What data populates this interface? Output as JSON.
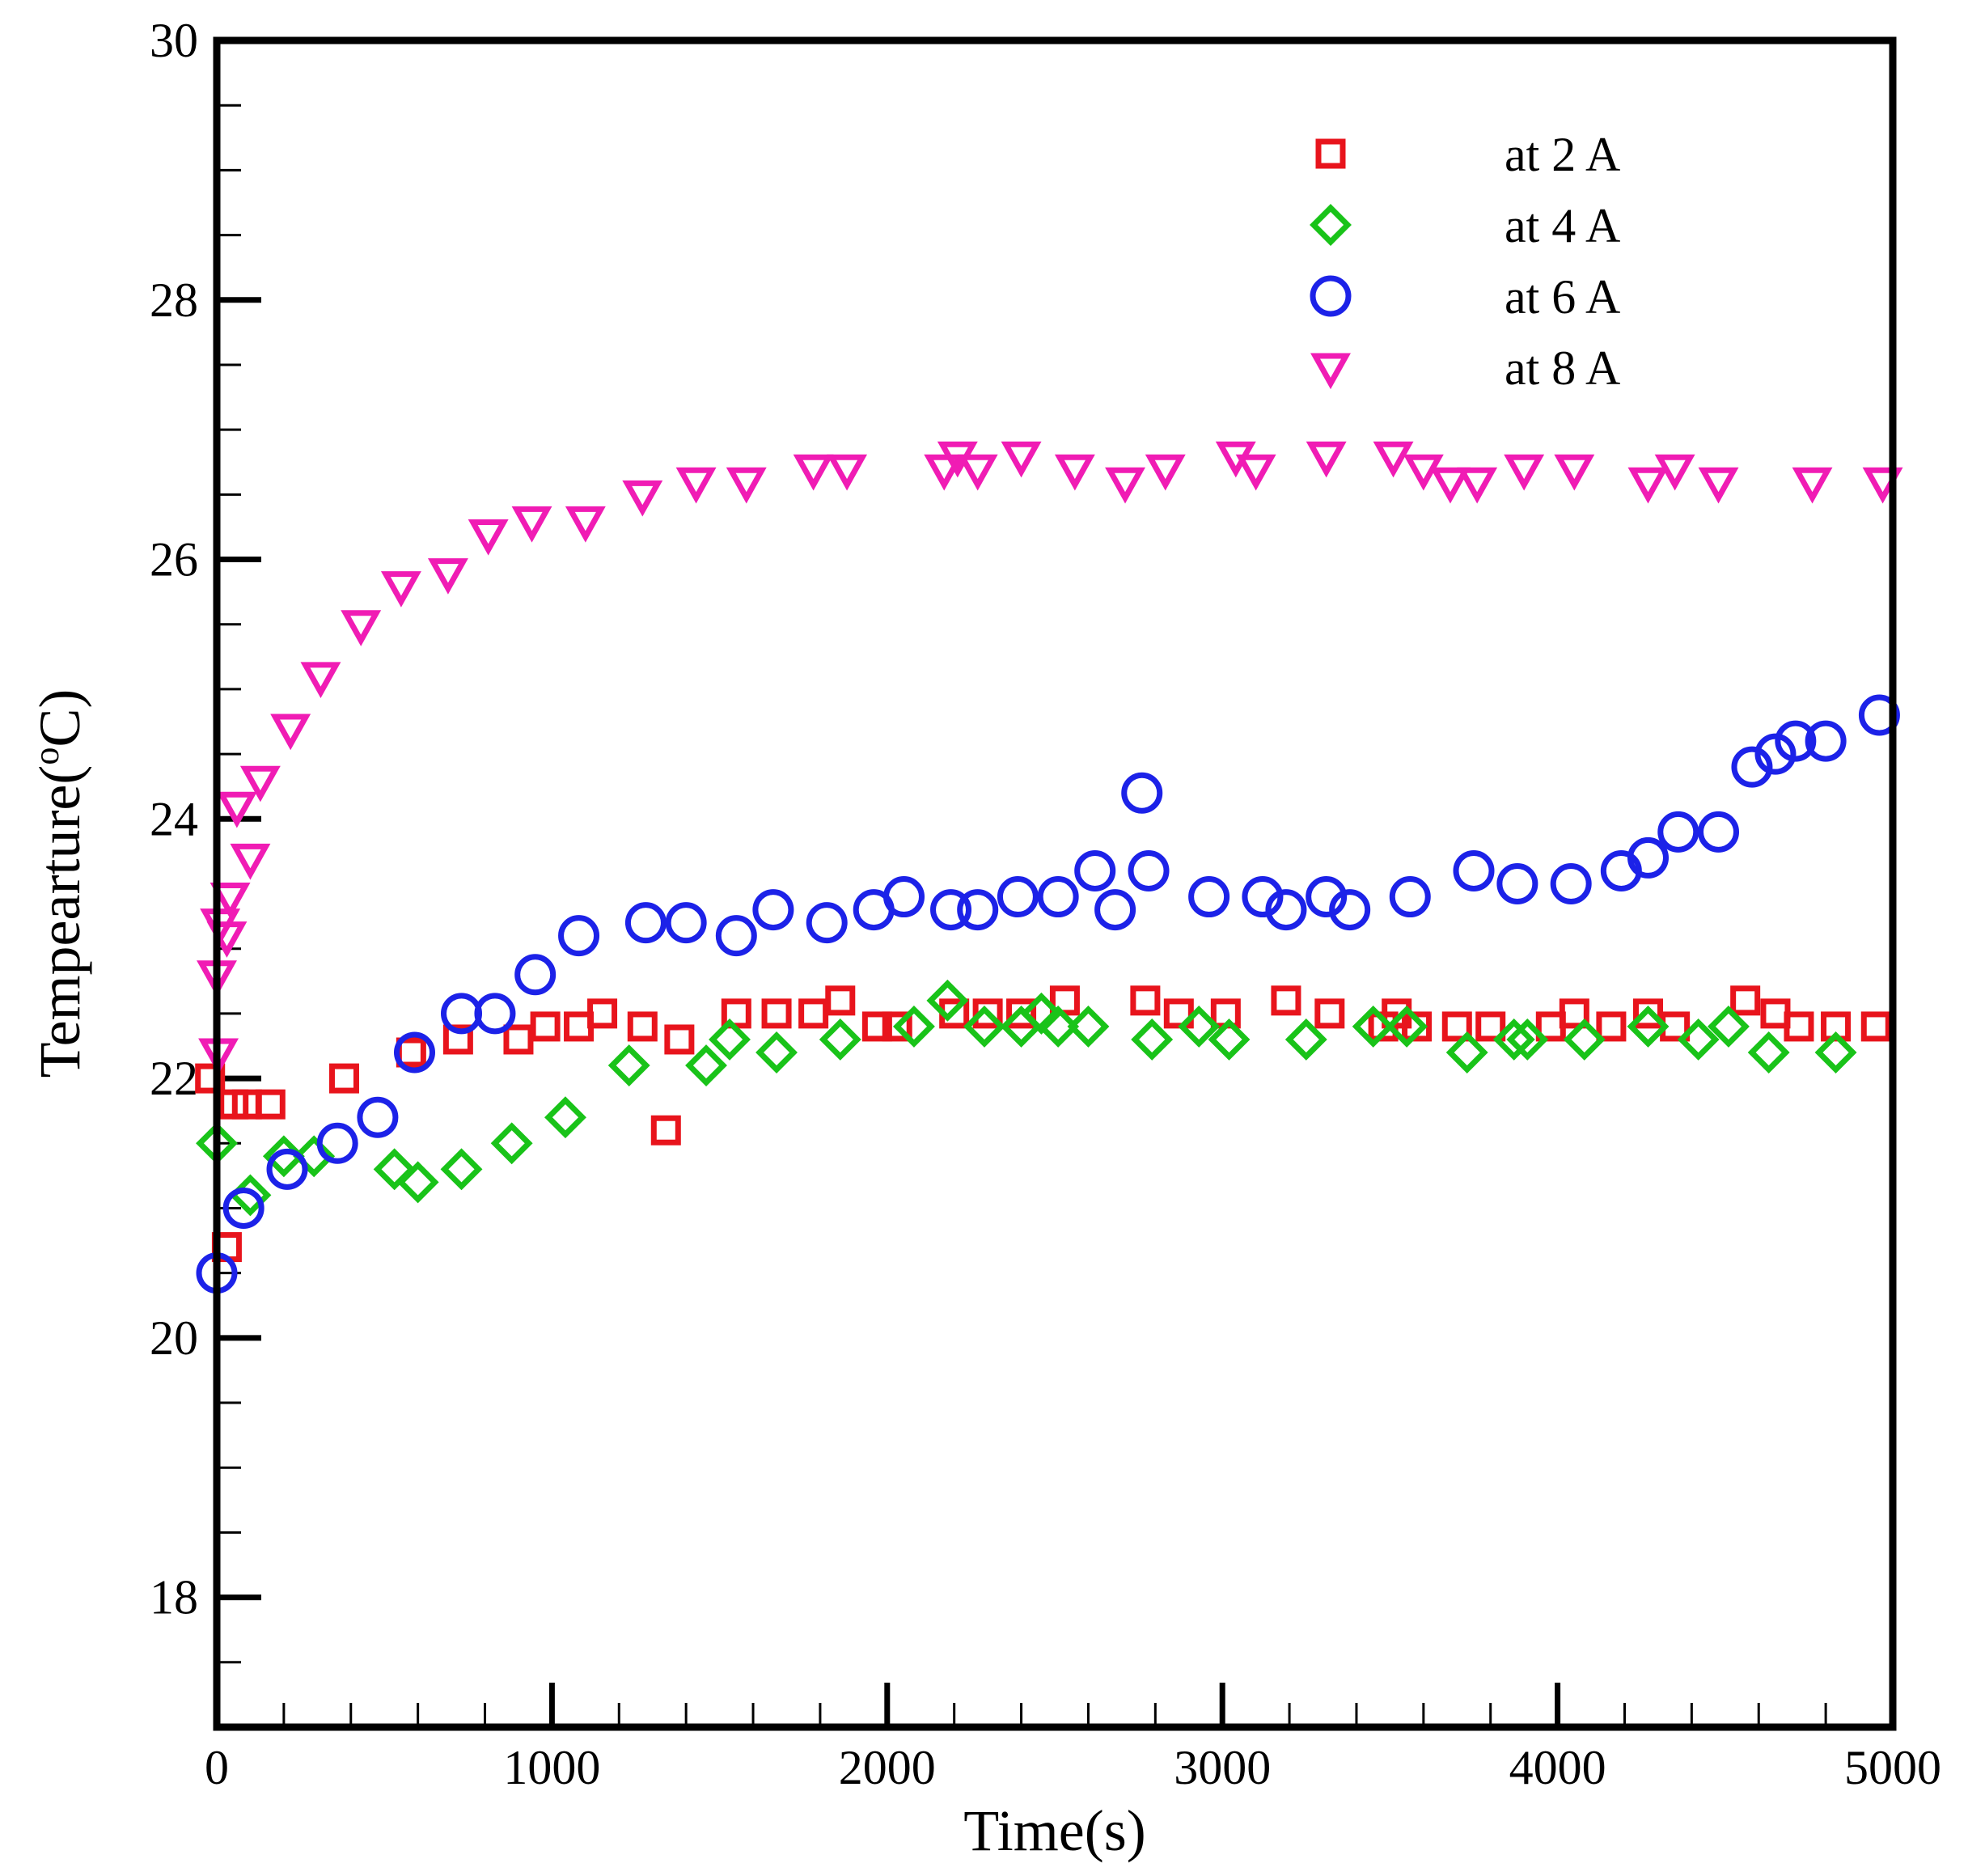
{
  "chart_data": {
    "type": "scatter",
    "title": "",
    "xlabel": "Time(s)",
    "ylabel_main": "Tempearture(",
    "ylabel_sup": "o",
    "ylabel_end": "C)",
    "xlim": [
      0,
      5000
    ],
    "ylim": [
      17,
      30
    ],
    "xticks": [
      0,
      1000,
      2000,
      3000,
      4000,
      5000
    ],
    "yticks": [
      18,
      20,
      22,
      24,
      26,
      28,
      30
    ],
    "legend_position": "top-right",
    "series": [
      {
        "name": "at 2 A",
        "marker": "square",
        "color": "#e8141c",
        "points": [
          [
            -20,
            22.0
          ],
          [
            30,
            20.7
          ],
          [
            50,
            21.8
          ],
          [
            90,
            21.8
          ],
          [
            160,
            21.8
          ],
          [
            380,
            22.0
          ],
          [
            580,
            22.2
          ],
          [
            720,
            22.3
          ],
          [
            900,
            22.3
          ],
          [
            980,
            22.4
          ],
          [
            1080,
            22.4
          ],
          [
            1150,
            22.5
          ],
          [
            1270,
            22.4
          ],
          [
            1380,
            22.3
          ],
          [
            1340,
            21.6
          ],
          [
            1550,
            22.5
          ],
          [
            1670,
            22.5
          ],
          [
            1780,
            22.5
          ],
          [
            1860,
            22.6
          ],
          [
            1970,
            22.4
          ],
          [
            2030,
            22.4
          ],
          [
            2200,
            22.5
          ],
          [
            2300,
            22.5
          ],
          [
            2400,
            22.5
          ],
          [
            2530,
            22.6
          ],
          [
            2770,
            22.6
          ],
          [
            2870,
            22.5
          ],
          [
            3010,
            22.5
          ],
          [
            3190,
            22.6
          ],
          [
            3320,
            22.5
          ],
          [
            3480,
            22.4
          ],
          [
            3520,
            22.5
          ],
          [
            3580,
            22.4
          ],
          [
            3700,
            22.4
          ],
          [
            3800,
            22.4
          ],
          [
            3980,
            22.4
          ],
          [
            4050,
            22.5
          ],
          [
            4160,
            22.4
          ],
          [
            4270,
            22.5
          ],
          [
            4350,
            22.4
          ],
          [
            4560,
            22.6
          ],
          [
            4650,
            22.5
          ],
          [
            4720,
            22.4
          ],
          [
            4830,
            22.4
          ],
          [
            4950,
            22.4
          ]
        ]
      },
      {
        "name": "at 4 A",
        "marker": "diamond",
        "color": "#19c319",
        "points": [
          [
            0,
            21.5
          ],
          [
            100,
            21.1
          ],
          [
            200,
            21.4
          ],
          [
            290,
            21.4
          ],
          [
            530,
            21.3
          ],
          [
            600,
            21.2
          ],
          [
            730,
            21.3
          ],
          [
            880,
            21.5
          ],
          [
            1040,
            21.7
          ],
          [
            1230,
            22.1
          ],
          [
            1460,
            22.1
          ],
          [
            1530,
            22.3
          ],
          [
            1670,
            22.2
          ],
          [
            1860,
            22.3
          ],
          [
            2080,
            22.4
          ],
          [
            2180,
            22.6
          ],
          [
            2290,
            22.4
          ],
          [
            2400,
            22.4
          ],
          [
            2460,
            22.5
          ],
          [
            2510,
            22.4
          ],
          [
            2600,
            22.4
          ],
          [
            2790,
            22.3
          ],
          [
            2930,
            22.4
          ],
          [
            3020,
            22.3
          ],
          [
            3250,
            22.3
          ],
          [
            3450,
            22.4
          ],
          [
            3550,
            22.4
          ],
          [
            3730,
            22.2
          ],
          [
            3870,
            22.3
          ],
          [
            3910,
            22.3
          ],
          [
            4080,
            22.3
          ],
          [
            4270,
            22.4
          ],
          [
            4420,
            22.3
          ],
          [
            4510,
            22.4
          ],
          [
            4630,
            22.2
          ],
          [
            4830,
            22.2
          ]
        ]
      },
      {
        "name": "at 6 A",
        "marker": "circle",
        "color": "#1c22e8",
        "points": [
          [
            0,
            20.5
          ],
          [
            80,
            21.0
          ],
          [
            210,
            21.3
          ],
          [
            360,
            21.5
          ],
          [
            480,
            21.7
          ],
          [
            590,
            22.2
          ],
          [
            730,
            22.5
          ],
          [
            830,
            22.5
          ],
          [
            950,
            22.8
          ],
          [
            1080,
            23.1
          ],
          [
            1280,
            23.2
          ],
          [
            1400,
            23.2
          ],
          [
            1550,
            23.1
          ],
          [
            1660,
            23.3
          ],
          [
            1820,
            23.2
          ],
          [
            1960,
            23.3
          ],
          [
            2050,
            23.4
          ],
          [
            2190,
            23.3
          ],
          [
            2270,
            23.3
          ],
          [
            2390,
            23.4
          ],
          [
            2510,
            23.4
          ],
          [
            2620,
            23.6
          ],
          [
            2680,
            23.3
          ],
          [
            2760,
            24.2
          ],
          [
            2780,
            23.6
          ],
          [
            2960,
            23.4
          ],
          [
            3120,
            23.4
          ],
          [
            3190,
            23.3
          ],
          [
            3310,
            23.4
          ],
          [
            3380,
            23.3
          ],
          [
            3560,
            23.4
          ],
          [
            3750,
            23.6
          ],
          [
            3880,
            23.5
          ],
          [
            4040,
            23.5
          ],
          [
            4190,
            23.6
          ],
          [
            4270,
            23.7
          ],
          [
            4360,
            23.9
          ],
          [
            4480,
            23.9
          ],
          [
            4580,
            24.4
          ],
          [
            4650,
            24.5
          ],
          [
            4710,
            24.6
          ],
          [
            4800,
            24.6
          ],
          [
            4960,
            24.8
          ]
        ]
      },
      {
        "name": "at 8 A",
        "marker": "triangle-down",
        "color": "#f01cb4",
        "points": [
          [
            0,
            22.8
          ],
          [
            5,
            22.2
          ],
          [
            10,
            23.2
          ],
          [
            30,
            23.1
          ],
          [
            40,
            23.4
          ],
          [
            60,
            24.1
          ],
          [
            100,
            23.7
          ],
          [
            130,
            24.3
          ],
          [
            220,
            24.7
          ],
          [
            310,
            25.1
          ],
          [
            430,
            25.5
          ],
          [
            550,
            25.8
          ],
          [
            690,
            25.9
          ],
          [
            810,
            26.2
          ],
          [
            940,
            26.3
          ],
          [
            1100,
            26.3
          ],
          [
            1270,
            26.5
          ],
          [
            1430,
            26.6
          ],
          [
            1580,
            26.6
          ],
          [
            1780,
            26.7
          ],
          [
            1880,
            26.7
          ],
          [
            2170,
            26.7
          ],
          [
            2210,
            26.8
          ],
          [
            2270,
            26.7
          ],
          [
            2400,
            26.8
          ],
          [
            2560,
            26.7
          ],
          [
            2710,
            26.6
          ],
          [
            2830,
            26.7
          ],
          [
            3040,
            26.8
          ],
          [
            3100,
            26.7
          ],
          [
            3310,
            26.8
          ],
          [
            3510,
            26.8
          ],
          [
            3600,
            26.7
          ],
          [
            3680,
            26.6
          ],
          [
            3760,
            26.6
          ],
          [
            3900,
            26.7
          ],
          [
            4050,
            26.7
          ],
          [
            4270,
            26.6
          ],
          [
            4350,
            26.7
          ],
          [
            4480,
            26.6
          ],
          [
            4760,
            26.6
          ],
          [
            4970,
            26.6
          ]
        ]
      }
    ]
  }
}
